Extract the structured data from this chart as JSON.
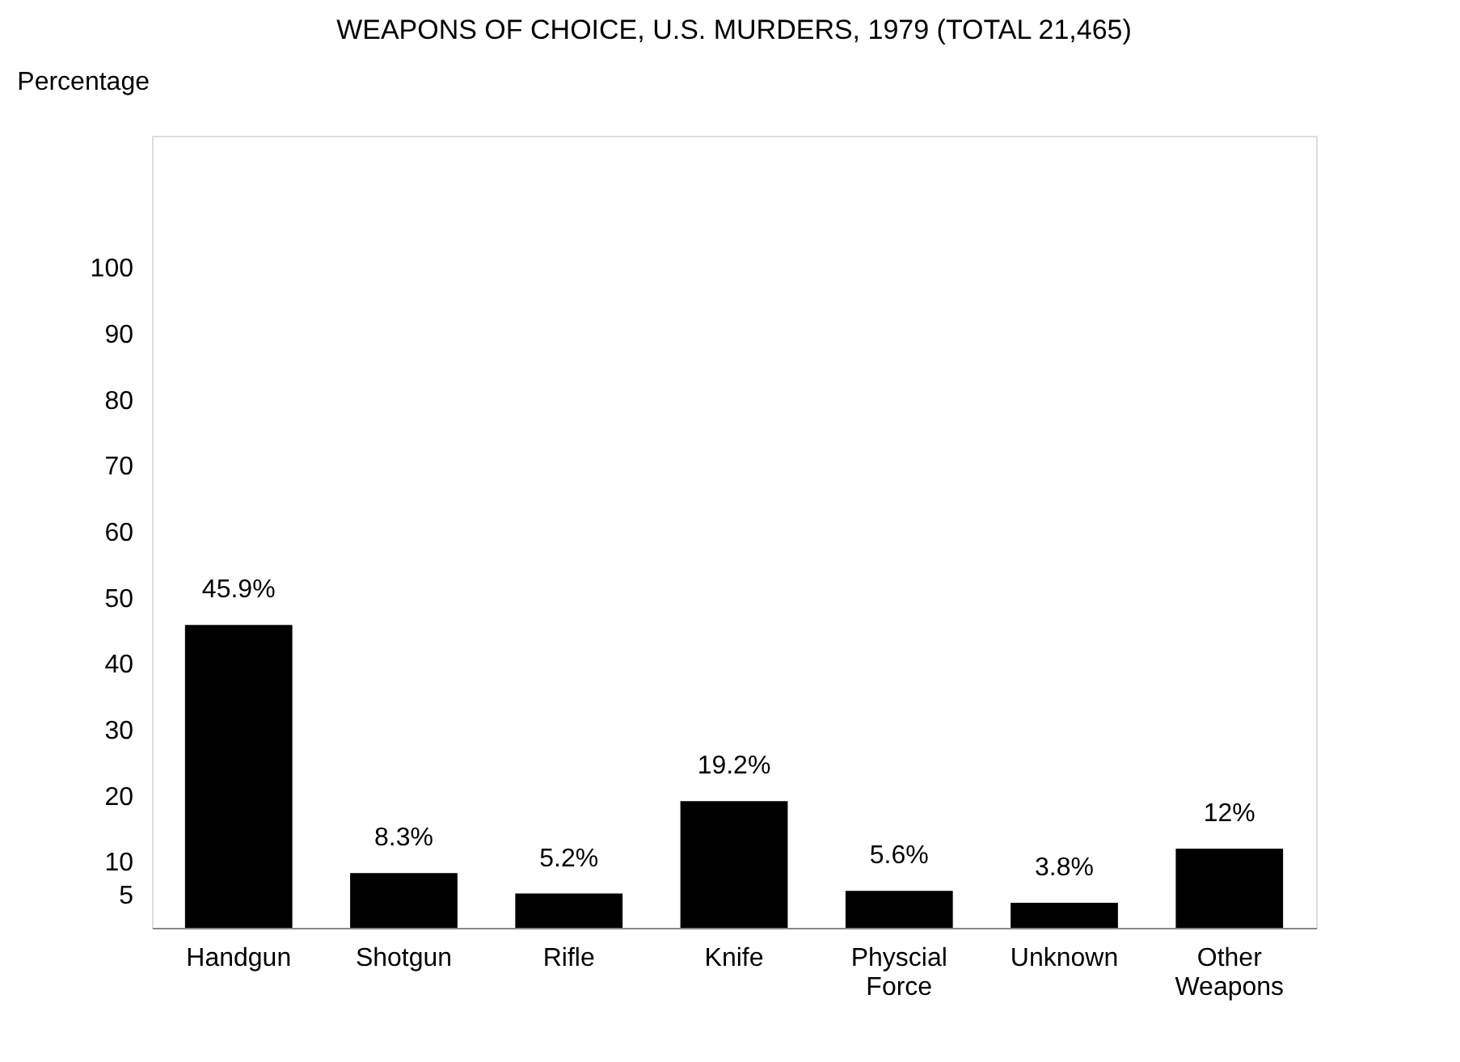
{
  "chart_data": {
    "type": "bar",
    "title": "WEAPONS OF CHOICE, U.S. MURDERS, 1979 (TOTAL 21,465)",
    "ylabel": "Percentage",
    "categories": [
      "Handgun",
      "Shotgun",
      "Rifle",
      "Knife",
      "Physcial Force",
      "Unknown",
      "Other Weapons"
    ],
    "values": [
      45.9,
      8.3,
      5.2,
      19.2,
      5.6,
      3.8,
      12
    ],
    "value_labels": [
      "45.9%",
      "8.3%",
      "5.2%",
      "19.2%",
      "5.6%",
      "3.8%",
      "12%"
    ],
    "color": "#000000",
    "ylim": [
      0,
      120
    ],
    "yticks": [
      5,
      10,
      20,
      30,
      40,
      50,
      60,
      70,
      80,
      90,
      100
    ],
    "grid": false
  }
}
